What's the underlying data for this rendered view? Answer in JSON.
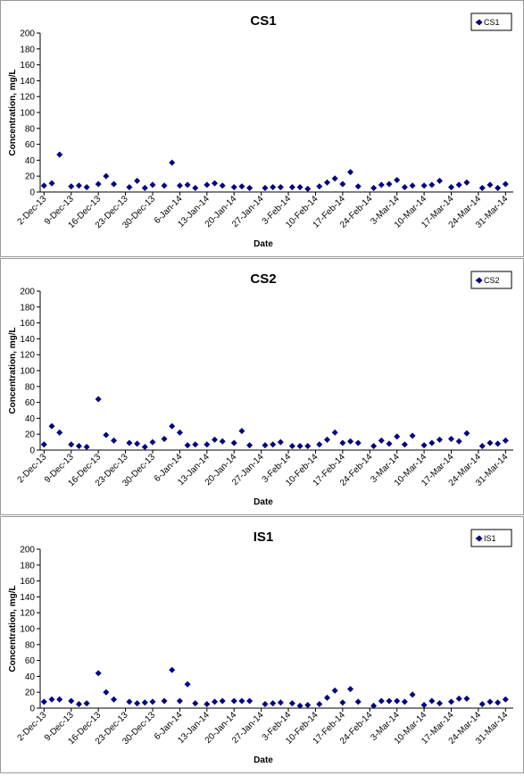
{
  "chart_data": [
    {
      "type": "scatter",
      "title": "CS1",
      "x_label": "Date",
      "y_label": "Concentration, mg/L",
      "x": [
        "2013-12-02",
        "2013-12-04",
        "2013-12-06",
        "2013-12-09",
        "2013-12-11",
        "2013-12-13",
        "2013-12-16",
        "2013-12-18",
        "2013-12-20",
        "2013-12-24",
        "2013-12-26",
        "2013-12-28",
        "2013-12-30",
        "2014-01-02",
        "2014-01-04",
        "2014-01-06",
        "2014-01-08",
        "2014-01-10",
        "2014-01-13",
        "2014-01-15",
        "2014-01-17",
        "2014-01-20",
        "2014-01-22",
        "2014-01-24",
        "2014-01-28",
        "2014-01-30",
        "2014-02-01",
        "2014-02-04",
        "2014-02-06",
        "2014-02-08",
        "2014-02-11",
        "2014-02-13",
        "2014-02-15",
        "2014-02-17",
        "2014-02-19",
        "2014-02-21",
        "2014-02-25",
        "2014-02-27",
        "2014-03-01",
        "2014-03-03",
        "2014-03-05",
        "2014-03-07",
        "2014-03-10",
        "2014-03-12",
        "2014-03-14",
        "2014-03-17",
        "2014-03-19",
        "2014-03-21",
        "2014-03-25",
        "2014-03-27",
        "2014-03-29",
        "2014-03-31"
      ],
      "series": [
        {
          "name": "CS1",
          "color": "#000080",
          "values": [
            8,
            11,
            47,
            7,
            8,
            6,
            10,
            20,
            10,
            6,
            14,
            5,
            9,
            8,
            37,
            8,
            9,
            5,
            9,
            11,
            8,
            6,
            7,
            5,
            5,
            6,
            6,
            6,
            6,
            4,
            7,
            12,
            17,
            10,
            25,
            7,
            5,
            9,
            10,
            15,
            6,
            8,
            8,
            9,
            14,
            6,
            9,
            12,
            5,
            9,
            5,
            10
          ]
        }
      ],
      "xlim": [
        "2013-12-01",
        "2014-04-02"
      ],
      "xticks": [
        {
          "value": "2013-12-02",
          "label": "2-Dec-13"
        },
        {
          "value": "2013-12-09",
          "label": "9-Dec-13"
        },
        {
          "value": "2013-12-16",
          "label": "16-Dec-13"
        },
        {
          "value": "2013-12-23",
          "label": "23-Dec-13"
        },
        {
          "value": "2013-12-30",
          "label": "30-Dec-13"
        },
        {
          "value": "2014-01-06",
          "label": "6-Jan-14"
        },
        {
          "value": "2014-01-13",
          "label": "13-Jan-14"
        },
        {
          "value": "2014-01-20",
          "label": "20-Jan-14"
        },
        {
          "value": "2014-01-27",
          "label": "27-Jan-14"
        },
        {
          "value": "2014-02-03",
          "label": "3-Feb-14"
        },
        {
          "value": "2014-02-10",
          "label": "10-Feb-14"
        },
        {
          "value": "2014-02-17",
          "label": "17-Feb-14"
        },
        {
          "value": "2014-02-24",
          "label": "24-Feb-14"
        },
        {
          "value": "2014-03-03",
          "label": "3-Mar-14"
        },
        {
          "value": "2014-03-10",
          "label": "10-Mar-14"
        },
        {
          "value": "2014-03-17",
          "label": "17-Mar-14"
        },
        {
          "value": "2014-03-24",
          "label": "24-Mar-14"
        },
        {
          "value": "2014-03-31",
          "label": "31-Mar-14"
        }
      ],
      "ylim": [
        0,
        200
      ],
      "yticks": [
        0,
        20,
        40,
        60,
        80,
        100,
        120,
        140,
        160,
        180,
        200
      ],
      "legend": "top-right"
    },
    {
      "type": "scatter",
      "title": "CS2",
      "x_label": "Date",
      "y_label": "Concentration, mg/L",
      "x": [
        "2013-12-02",
        "2013-12-04",
        "2013-12-06",
        "2013-12-09",
        "2013-12-11",
        "2013-12-13",
        "2013-12-16",
        "2013-12-18",
        "2013-12-20",
        "2013-12-24",
        "2013-12-26",
        "2013-12-28",
        "2013-12-30",
        "2014-01-02",
        "2014-01-04",
        "2014-01-06",
        "2014-01-08",
        "2014-01-10",
        "2014-01-13",
        "2014-01-15",
        "2014-01-17",
        "2014-01-20",
        "2014-01-22",
        "2014-01-24",
        "2014-01-28",
        "2014-01-30",
        "2014-02-01",
        "2014-02-04",
        "2014-02-06",
        "2014-02-08",
        "2014-02-11",
        "2014-02-13",
        "2014-02-15",
        "2014-02-17",
        "2014-02-19",
        "2014-02-21",
        "2014-02-25",
        "2014-02-27",
        "2014-03-01",
        "2014-03-03",
        "2014-03-05",
        "2014-03-07",
        "2014-03-10",
        "2014-03-12",
        "2014-03-14",
        "2014-03-17",
        "2014-03-19",
        "2014-03-21",
        "2014-03-25",
        "2014-03-27",
        "2014-03-29",
        "2014-03-31"
      ],
      "series": [
        {
          "name": "CS2",
          "color": "#000080",
          "values": [
            7,
            30,
            22,
            7,
            5,
            4,
            64,
            19,
            12,
            9,
            8,
            4,
            10,
            14,
            30,
            22,
            6,
            7,
            7,
            13,
            11,
            9,
            24,
            6,
            6,
            7,
            10,
            5,
            5,
            5,
            7,
            13,
            22,
            9,
            11,
            9,
            5,
            12,
            8,
            17,
            7,
            18,
            6,
            9,
            13,
            14,
            11,
            21,
            5,
            9,
            8,
            12
          ]
        }
      ],
      "xlim": [
        "2013-12-01",
        "2014-04-02"
      ],
      "xticks": [
        {
          "value": "2013-12-02",
          "label": "2-Dec-13"
        },
        {
          "value": "2013-12-09",
          "label": "9-Dec-13"
        },
        {
          "value": "2013-12-16",
          "label": "16-Dec-13"
        },
        {
          "value": "2013-12-23",
          "label": "23-Dec-13"
        },
        {
          "value": "2013-12-30",
          "label": "30-Dec-13"
        },
        {
          "value": "2014-01-06",
          "label": "6-Jan-14"
        },
        {
          "value": "2014-01-13",
          "label": "13-Jan-14"
        },
        {
          "value": "2014-01-20",
          "label": "20-Jan-14"
        },
        {
          "value": "2014-01-27",
          "label": "27-Jan-14"
        },
        {
          "value": "2014-02-03",
          "label": "3-Feb-14"
        },
        {
          "value": "2014-02-10",
          "label": "10-Feb-14"
        },
        {
          "value": "2014-02-17",
          "label": "17-Feb-14"
        },
        {
          "value": "2014-02-24",
          "label": "24-Feb-14"
        },
        {
          "value": "2014-03-03",
          "label": "3-Mar-14"
        },
        {
          "value": "2014-03-10",
          "label": "10-Mar-14"
        },
        {
          "value": "2014-03-17",
          "label": "17-Mar-14"
        },
        {
          "value": "2014-03-24",
          "label": "24-Mar-14"
        },
        {
          "value": "2014-03-31",
          "label": "31-Mar-14"
        }
      ],
      "ylim": [
        0,
        200
      ],
      "yticks": [
        0,
        20,
        40,
        60,
        80,
        100,
        120,
        140,
        160,
        180,
        200
      ],
      "legend": "top-right"
    },
    {
      "type": "scatter",
      "title": "IS1",
      "x_label": "Date",
      "y_label": "Concentration, mg/L",
      "x": [
        "2013-12-02",
        "2013-12-04",
        "2013-12-06",
        "2013-12-09",
        "2013-12-11",
        "2013-12-13",
        "2013-12-16",
        "2013-12-18",
        "2013-12-20",
        "2013-12-24",
        "2013-12-26",
        "2013-12-28",
        "2013-12-30",
        "2014-01-02",
        "2014-01-04",
        "2014-01-06",
        "2014-01-08",
        "2014-01-10",
        "2014-01-13",
        "2014-01-15",
        "2014-01-17",
        "2014-01-20",
        "2014-01-22",
        "2014-01-24",
        "2014-01-28",
        "2014-01-30",
        "2014-02-01",
        "2014-02-04",
        "2014-02-06",
        "2014-02-08",
        "2014-02-11",
        "2014-02-13",
        "2014-02-15",
        "2014-02-17",
        "2014-02-19",
        "2014-02-21",
        "2014-02-25",
        "2014-02-27",
        "2014-03-01",
        "2014-03-03",
        "2014-03-05",
        "2014-03-07",
        "2014-03-10",
        "2014-03-12",
        "2014-03-14",
        "2014-03-17",
        "2014-03-19",
        "2014-03-21",
        "2014-03-25",
        "2014-03-27",
        "2014-03-29",
        "2014-03-31"
      ],
      "series": [
        {
          "name": "IS1",
          "color": "#000080",
          "values": [
            8,
            11,
            11,
            9,
            5,
            6,
            44,
            20,
            11,
            8,
            6,
            7,
            8,
            9,
            48,
            9,
            30,
            6,
            5,
            8,
            9,
            9,
            9,
            9,
            5,
            6,
            7,
            6,
            3,
            4,
            5,
            13,
            22,
            7,
            24,
            8,
            3,
            9,
            9,
            9,
            8,
            17,
            4,
            9,
            6,
            8,
            12,
            12,
            5,
            8,
            7,
            11
          ]
        }
      ],
      "xlim": [
        "2013-12-01",
        "2014-04-02"
      ],
      "xticks": [
        {
          "value": "2013-12-02",
          "label": "2-Dec-13"
        },
        {
          "value": "2013-12-09",
          "label": "9-Dec-13"
        },
        {
          "value": "2013-12-16",
          "label": "16-Dec-13"
        },
        {
          "value": "2013-12-23",
          "label": "23-Dec-13"
        },
        {
          "value": "2013-12-30",
          "label": "30-Dec-13"
        },
        {
          "value": "2014-01-06",
          "label": "6-Jan-14"
        },
        {
          "value": "2014-01-13",
          "label": "13-Jan-14"
        },
        {
          "value": "2014-01-20",
          "label": "20-Jan-14"
        },
        {
          "value": "2014-01-27",
          "label": "27-Jan-14"
        },
        {
          "value": "2014-02-03",
          "label": "3-Feb-14"
        },
        {
          "value": "2014-02-10",
          "label": "10-Feb-14"
        },
        {
          "value": "2014-02-17",
          "label": "17-Feb-14"
        },
        {
          "value": "2014-02-24",
          "label": "24-Feb-14"
        },
        {
          "value": "2014-03-03",
          "label": "3-Mar-14"
        },
        {
          "value": "2014-03-10",
          "label": "10-Mar-14"
        },
        {
          "value": "2014-03-17",
          "label": "17-Mar-14"
        },
        {
          "value": "2014-03-24",
          "label": "24-Mar-14"
        },
        {
          "value": "2014-03-31",
          "label": "31-Mar-14"
        }
      ],
      "ylim": [
        0,
        200
      ],
      "yticks": [
        0,
        20,
        40,
        60,
        80,
        100,
        120,
        140,
        160,
        180,
        200
      ],
      "legend": "top-right"
    }
  ]
}
